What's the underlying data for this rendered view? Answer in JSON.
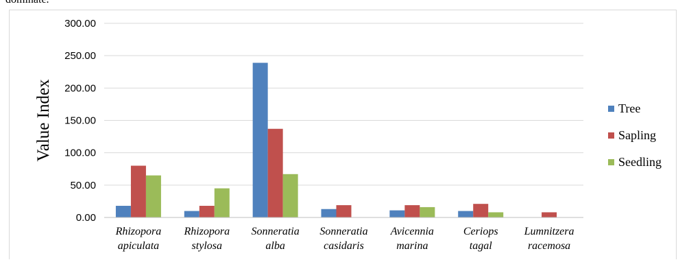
{
  "page": {
    "top_fragment": "dominate."
  },
  "chart_data": {
    "type": "bar",
    "title": "",
    "xlabel": "",
    "ylabel": "Value Index",
    "ylim": [
      0,
      300
    ],
    "yticks": [
      "0.00",
      "50.00",
      "100.00",
      "150.00",
      "200.00",
      "250.00",
      "300.00"
    ],
    "grid": true,
    "legend_position": "right",
    "categories": [
      [
        "Rhizopora",
        "apiculata"
      ],
      [
        "Rhizopora",
        "stylosa"
      ],
      [
        "Sonneratia",
        "alba"
      ],
      [
        "Sonneratia",
        "casidaris"
      ],
      [
        "Avicennia",
        "marina"
      ],
      [
        "Ceriops",
        "tagal"
      ],
      [
        "Lumnitzera",
        "racemosa"
      ]
    ],
    "series": [
      {
        "name": "Tree",
        "color": "#4f81bd",
        "values": [
          18,
          10,
          239,
          13,
          11,
          10,
          0
        ]
      },
      {
        "name": "Sapling",
        "color": "#c0504d",
        "values": [
          80,
          18,
          137,
          19,
          19,
          21,
          8
        ]
      },
      {
        "name": "Seedling",
        "color": "#9bbb59",
        "values": [
          65,
          45,
          67,
          0,
          16,
          8,
          0
        ]
      }
    ]
  }
}
